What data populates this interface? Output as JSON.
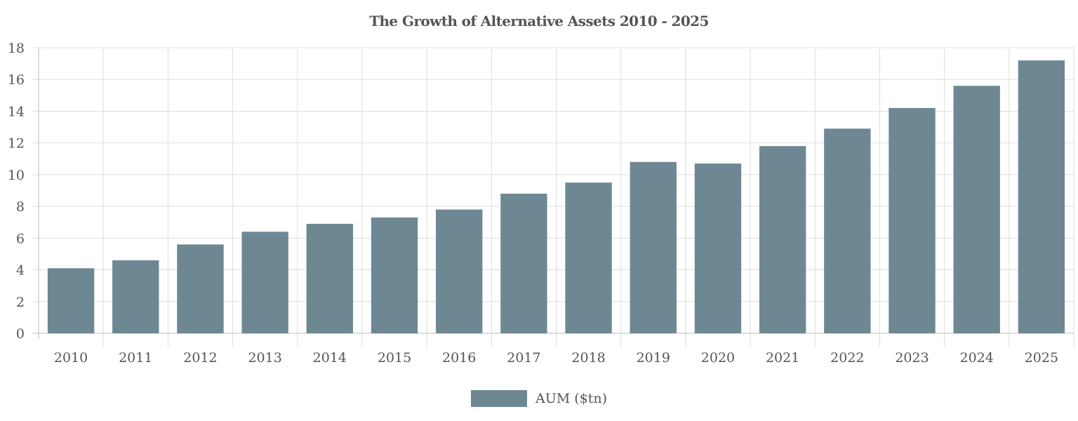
{
  "chart_data": {
    "type": "bar",
    "title": "The Growth of Alternative Assets 2010 - 2025",
    "xlabel": "",
    "ylabel": "",
    "categories": [
      "2010",
      "2011",
      "2012",
      "2013",
      "2014",
      "2015",
      "2016",
      "2017",
      "2018",
      "2019",
      "2020",
      "2021",
      "2022",
      "2023",
      "2024",
      "2025"
    ],
    "series": [
      {
        "name": "AUM ($tn)",
        "values": [
          4.1,
          4.6,
          5.6,
          6.4,
          6.9,
          7.3,
          7.8,
          8.8,
          9.5,
          10.8,
          10.7,
          11.8,
          12.9,
          14.2,
          15.6,
          17.2
        ],
        "color": "#6e8893"
      }
    ],
    "ylim": [
      0,
      18
    ],
    "yticks": [
      0,
      2,
      4,
      6,
      8,
      10,
      12,
      14,
      16,
      18
    ],
    "grid": true,
    "legend_position": "bottom-center"
  }
}
